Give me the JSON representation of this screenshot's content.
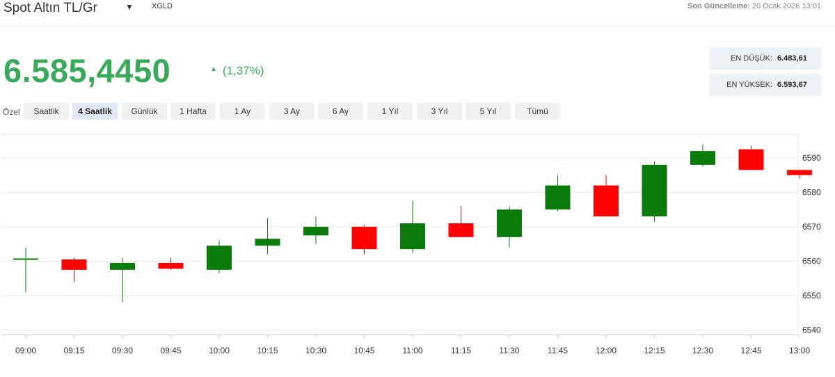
{
  "header": {
    "title": "Spot Altın TL/Gr",
    "caret_icon": "caret-down-icon",
    "symbol": "XGLD",
    "updated_label": "Son Güncelleme:",
    "updated_value": "20 Ocak 2026 13:01"
  },
  "quote": {
    "price": "6.585,4450",
    "change_icon": "triangle-up-icon",
    "change": "(1,37%)",
    "color_up": "#3aaa5a"
  },
  "stats": {
    "low_label": "EN DÜŞÜK:",
    "low_value": "6.483,61",
    "high_label": "EN YÜKSEK:",
    "high_value": "6.593,67"
  },
  "periods": {
    "label": "Özel",
    "selected": "4 Saatlik",
    "items": [
      "Saatlik",
      "4 Saatlik",
      "Günlük",
      "1 Hafta",
      "1 Ay",
      "3 Ay",
      "6 Ay",
      "1 Yıl",
      "3 Yıl",
      "5 Yıl",
      "Tümü"
    ]
  },
  "chart_data": {
    "type": "candlestick",
    "title": "",
    "xlabel": "",
    "ylabel": "",
    "ylim": [
      6540,
      6595
    ],
    "yticks": [
      6540,
      6550,
      6560,
      6570,
      6580,
      6590
    ],
    "grid": "horizontal",
    "colors": {
      "up": "#0a7a0a",
      "down": "#ff0000"
    },
    "categories": [
      "09:00",
      "09:15",
      "09:30",
      "09:45",
      "10:00",
      "10:15",
      "10:30",
      "10:45",
      "11:00",
      "11:15",
      "11:30",
      "11:45",
      "12:00",
      "12:15",
      "12:30",
      "12:45",
      "13:00"
    ],
    "candles": [
      {
        "open": 6560.8,
        "high": 6564.0,
        "low": 6551.0,
        "close": 6560.8
      },
      {
        "open": 6560.5,
        "high": 6561.0,
        "low": 6554.0,
        "close": 6557.5
      },
      {
        "open": 6557.5,
        "high": 6561.0,
        "low": 6548.0,
        "close": 6559.5
      },
      {
        "open": 6559.5,
        "high": 6561.0,
        "low": 6557.5,
        "close": 6557.8
      },
      {
        "open": 6557.5,
        "high": 6566.0,
        "low": 6556.5,
        "close": 6564.5
      },
      {
        "open": 6564.5,
        "high": 6572.5,
        "low": 6562.0,
        "close": 6566.5
      },
      {
        "open": 6567.5,
        "high": 6573.0,
        "low": 6565.0,
        "close": 6570.0
      },
      {
        "open": 6570.0,
        "high": 6570.5,
        "low": 6562.0,
        "close": 6563.5
      },
      {
        "open": 6563.5,
        "high": 6577.5,
        "low": 6562.5,
        "close": 6571.0
      },
      {
        "open": 6571.0,
        "high": 6576.0,
        "low": 6567.0,
        "close": 6567.0
      },
      {
        "open": 6567.0,
        "high": 6576.0,
        "low": 6564.0,
        "close": 6575.0
      },
      {
        "open": 6575.0,
        "high": 6585.0,
        "low": 6574.5,
        "close": 6582.0
      },
      {
        "open": 6582.0,
        "high": 6585.0,
        "low": 6573.0,
        "close": 6573.0
      },
      {
        "open": 6573.0,
        "high": 6589.0,
        "low": 6571.5,
        "close": 6588.0
      },
      {
        "open": 6588.0,
        "high": 6594.0,
        "low": 6587.5,
        "close": 6592.0
      },
      {
        "open": 6592.5,
        "high": 6593.5,
        "low": 6586.5,
        "close": 6586.5
      },
      {
        "open": 6586.5,
        "high": 6586.5,
        "low": 6584.0,
        "close": 6585.0
      }
    ]
  }
}
